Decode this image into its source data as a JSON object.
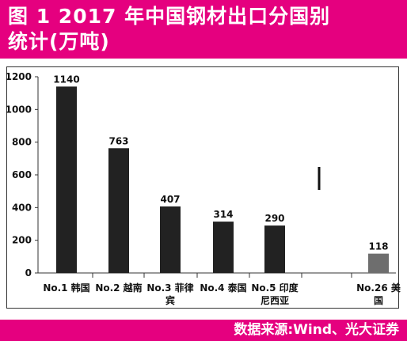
{
  "header": {
    "title_line1": "图 1   2017 年中国钢材出口分国别",
    "title_line2": "统计(万吨)"
  },
  "footer": {
    "source": "数据来源:Wind、光大证券"
  },
  "colors": {
    "brand": "#e5007f",
    "bar_main": "#222222",
    "bar_highlight": "#6e6e6e"
  },
  "chart_data": {
    "type": "bar",
    "title": "2017 年中国钢材出口分国别统计(万吨)",
    "xlabel": "",
    "ylabel": "",
    "ylim": [
      0,
      1200
    ],
    "yticks": [
      0,
      200,
      400,
      600,
      800,
      1000,
      1200
    ],
    "grid": false,
    "axis_break": true,
    "categories": [
      [
        "No.1 韩国"
      ],
      [
        "No.2 越南"
      ],
      [
        "No.3 菲律",
        "宾"
      ],
      [
        "No.4 泰国"
      ],
      [
        "No.5 印度",
        "尼西亚"
      ],
      [
        "No.26 美",
        "国"
      ]
    ],
    "values": [
      1140,
      763,
      407,
      314,
      290,
      118
    ],
    "value_labels": [
      "1140",
      "763",
      "407",
      "314",
      "290",
      "118"
    ]
  }
}
